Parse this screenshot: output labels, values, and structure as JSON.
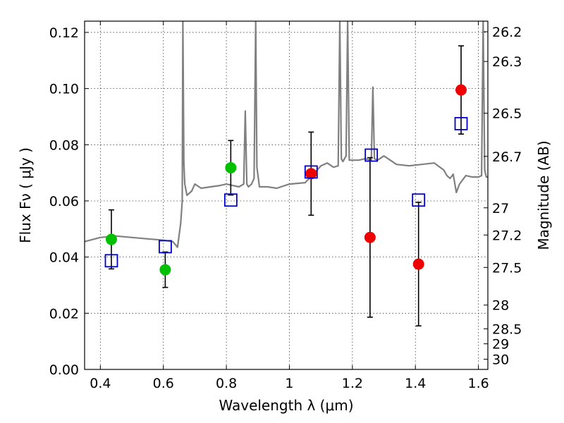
{
  "chart_data": {
    "type": "scatter",
    "title": "",
    "xlabel": "Wavelength  λ (μm)",
    "ylabel": "Flux  Fν  ( μJy )",
    "y2label": "Magnitude (AB)",
    "xlim": [
      0.35,
      1.63
    ],
    "ylim": [
      0.0,
      0.124
    ],
    "grid": true,
    "x_ticks": [
      0.4,
      0.6,
      0.8,
      1.0,
      1.2,
      1.4,
      1.6
    ],
    "x_tick_labels": [
      "0.4",
      "0.6",
      "0.8",
      "1",
      "1.2",
      "1.4",
      "1.6"
    ],
    "y_ticks": [
      0.0,
      0.02,
      0.04,
      0.06,
      0.08,
      0.1,
      0.12
    ],
    "y_tick_labels": [
      "0.00",
      "0.02",
      "0.04",
      "0.06",
      "0.08",
      "0.10",
      "0.12"
    ],
    "mag_ticks": [
      26.2,
      26.3,
      26.5,
      26.7,
      27,
      27.2,
      27.5,
      28,
      28.5,
      29,
      30
    ],
    "mag_tick_labels": [
      "26.2",
      "26.3",
      "26.5",
      "26.7",
      "27",
      "27.2",
      "27.5",
      "28",
      "28.5",
      "29",
      "30"
    ],
    "series": [
      {
        "marker": "circle",
        "color": "#00c000",
        "points": [
          {
            "x": 0.435,
            "y": 0.0463,
            "err": 0.0105
          },
          {
            "x": 0.606,
            "y": 0.0355,
            "err": 0.0063
          },
          {
            "x": 0.814,
            "y": 0.0718,
            "err": 0.0097
          }
        ]
      },
      {
        "marker": "circle",
        "color": "#ee0000",
        "points": [
          {
            "x": 1.069,
            "y": 0.0697,
            "err": 0.0148
          },
          {
            "x": 1.256,
            "y": 0.047,
            "err": 0.0284
          },
          {
            "x": 1.41,
            "y": 0.0375,
            "err": 0.022
          },
          {
            "x": 1.545,
            "y": 0.0995,
            "err": 0.0157
          }
        ]
      },
      {
        "marker": "open-square",
        "color": "#0000cc",
        "points": [
          {
            "x": 0.435,
            "y": 0.0387
          },
          {
            "x": 0.606,
            "y": 0.0437
          },
          {
            "x": 0.814,
            "y": 0.0603
          },
          {
            "x": 1.069,
            "y": 0.0703
          },
          {
            "x": 1.26,
            "y": 0.0763
          },
          {
            "x": 1.41,
            "y": 0.0603
          },
          {
            "x": 1.545,
            "y": 0.0875
          }
        ]
      },
      {
        "type": "line",
        "color": "#808080",
        "x": [
          0.35,
          0.4,
          0.45,
          0.5,
          0.55,
          0.6,
          0.63,
          0.645,
          0.655,
          0.66,
          0.662,
          0.665,
          0.668,
          0.675,
          0.69,
          0.7,
          0.72,
          0.75,
          0.78,
          0.8,
          0.82,
          0.84,
          0.855,
          0.86,
          0.865,
          0.87,
          0.88,
          0.888,
          0.893,
          0.897,
          0.905,
          0.93,
          0.96,
          1.0,
          1.05,
          1.08,
          1.1,
          1.12,
          1.14,
          1.155,
          1.16,
          1.165,
          1.17,
          1.18,
          1.185,
          1.19,
          1.2,
          1.22,
          1.24,
          1.26,
          1.265,
          1.27,
          1.28,
          1.3,
          1.32,
          1.34,
          1.38,
          1.42,
          1.46,
          1.49,
          1.5,
          1.51,
          1.52,
          1.53,
          1.54,
          1.56,
          1.58,
          1.6,
          1.61,
          1.615,
          1.62,
          1.625,
          1.63
        ],
        "y": [
          0.0455,
          0.047,
          0.0475,
          0.047,
          0.0465,
          0.046,
          0.0455,
          0.0435,
          0.052,
          0.06,
          0.124,
          0.0735,
          0.066,
          0.062,
          0.0635,
          0.066,
          0.0645,
          0.065,
          0.0655,
          0.066,
          0.0655,
          0.065,
          0.066,
          0.092,
          0.066,
          0.065,
          0.066,
          0.068,
          0.124,
          0.072,
          0.065,
          0.065,
          0.0645,
          0.066,
          0.0665,
          0.07,
          0.0725,
          0.0735,
          0.072,
          0.0725,
          0.124,
          0.075,
          0.074,
          0.076,
          0.124,
          0.0745,
          0.0745,
          0.0745,
          0.075,
          0.0745,
          0.1005,
          0.075,
          0.0745,
          0.076,
          0.0745,
          0.073,
          0.0725,
          0.073,
          0.0735,
          0.071,
          0.069,
          0.068,
          0.0695,
          0.063,
          0.066,
          0.069,
          0.0685,
          0.0685,
          0.069,
          0.124,
          0.071,
          0.0685,
          0.0685
        ]
      }
    ]
  }
}
